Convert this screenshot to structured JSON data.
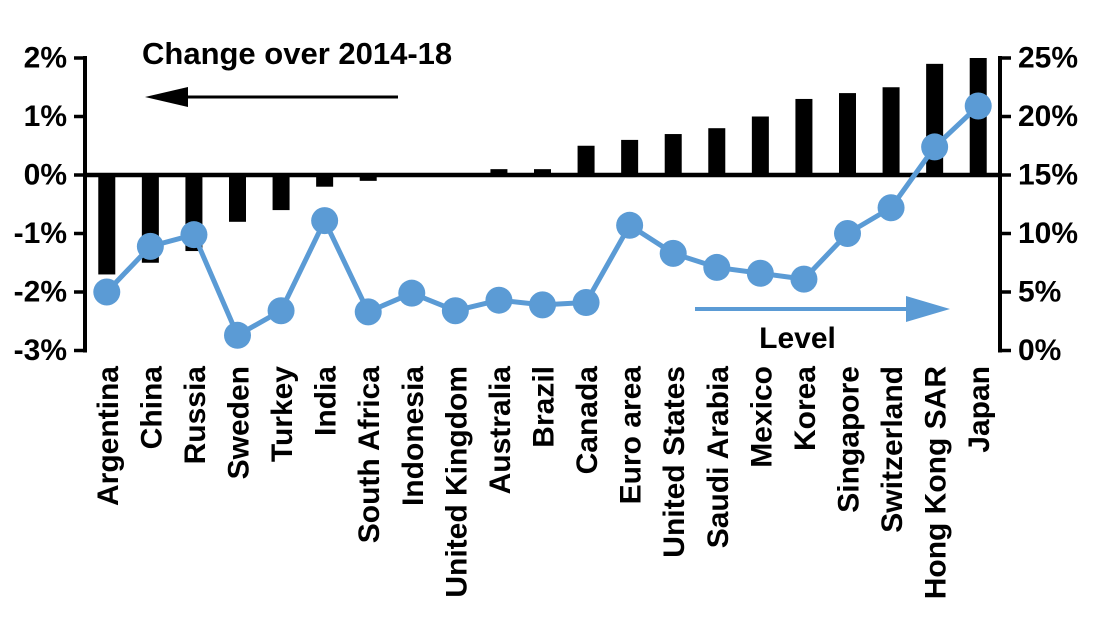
{
  "chart_data": {
    "type": "combo",
    "categories": [
      "Argentina",
      "China",
      "Russia",
      "Sweden",
      "Turkey",
      "India",
      "South Africa",
      "Indonesia",
      "United Kingdom",
      "Australia",
      "Brazil",
      "Canada",
      "Euro area",
      "United States",
      "Saudi Arabia",
      "Mexico",
      "Korea",
      "Singapore",
      "Switzerland",
      "Hong Kong SAR",
      "Japan"
    ],
    "series": [
      {
        "name": "Change over 2014-18",
        "type": "bar",
        "axis": "left",
        "unit": "percentage points",
        "color": "#000000",
        "values": [
          -1.7,
          -1.5,
          -1.3,
          -0.8,
          -0.6,
          -0.2,
          -0.1,
          0,
          0,
          0.1,
          0.1,
          0.5,
          0.6,
          0.7,
          0.8,
          1.0,
          1.3,
          1.4,
          1.5,
          1.9,
          2.0
        ]
      },
      {
        "name": "Level",
        "type": "line",
        "axis": "right",
        "unit": "%",
        "color": "#5B9BD5",
        "values": [
          5.0,
          8.9,
          9.9,
          1.3,
          3.4,
          11.1,
          3.3,
          4.9,
          3.4,
          4.3,
          3.9,
          4.1,
          10.7,
          8.3,
          7.1,
          6.6,
          6.1,
          10.0,
          12.2,
          17.4,
          20.9
        ]
      }
    ],
    "left_axis": {
      "ticks": [
        "2%",
        "1%",
        "0%",
        "-1%",
        "-2%",
        "-3%"
      ],
      "tick_values": [
        2,
        1,
        0,
        -1,
        -2,
        -3
      ],
      "min": -3,
      "max": 2
    },
    "right_axis": {
      "ticks": [
        "25%",
        "20%",
        "15%",
        "10%",
        "5%",
        "0%"
      ],
      "tick_values": [
        25,
        20,
        15,
        10,
        5,
        0
      ],
      "min": 0,
      "max": 25
    },
    "annotations": {
      "left_title": "Change over 2014-18",
      "left_arrow_direction": "left",
      "right_title": "Level",
      "right_arrow_direction": "right"
    },
    "colors": {
      "bar": "#000000",
      "line": "#5B9BD5",
      "text": "#000000",
      "background": "#FFFFFF"
    },
    "legend_position": "in-plot annotations",
    "grid": false
  }
}
